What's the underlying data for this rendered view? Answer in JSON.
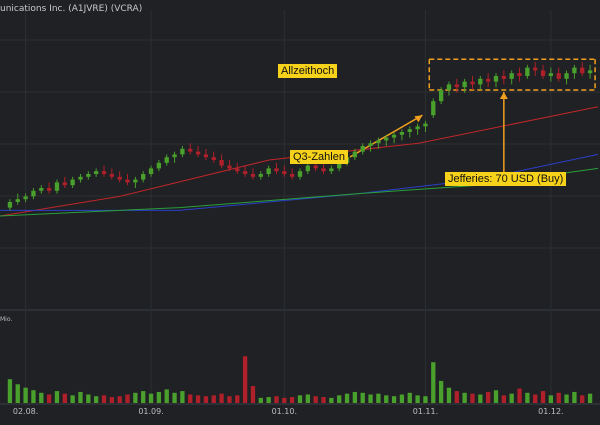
{
  "title": "unications Inc. (A1JVRE) (VCRA)",
  "volume_label": "Mio.",
  "annotations": {
    "ath": "Allzeithoch",
    "q3": "Q3-Zahlen",
    "jefferies": "Jefferies: 70 USD (Buy)"
  },
  "colors": {
    "background": "#1f2124",
    "grid": "#2c2f33",
    "up": "#4aa02c",
    "down": "#b0202a",
    "ma_red": "#c0262a",
    "ma_blue": "#2a3fc8",
    "ma_green": "#29a03a",
    "annotation": "#f7d21a",
    "range_box": "#f0a020"
  },
  "chart_data": {
    "type": "candlestick",
    "x_ticks": [
      "02.08.",
      "01.09.",
      "01.10.",
      "01.11.",
      "01.12."
    ],
    "y_range": [
      0,
      100
    ],
    "volume_range": [
      0,
      100
    ],
    "candles": [
      {
        "o": 33,
        "h": 36,
        "l": 32,
        "c": 35,
        "v": 28
      },
      {
        "o": 35,
        "h": 38,
        "l": 34,
        "c": 36,
        "v": 22
      },
      {
        "o": 36,
        "h": 38,
        "l": 35,
        "c": 37,
        "v": 18
      },
      {
        "o": 37,
        "h": 40,
        "l": 36,
        "c": 39,
        "v": 15
      },
      {
        "o": 39,
        "h": 41,
        "l": 38,
        "c": 40,
        "v": 12
      },
      {
        "o": 40,
        "h": 42,
        "l": 38,
        "c": 39,
        "v": 10
      },
      {
        "o": 39,
        "h": 43,
        "l": 38,
        "c": 42,
        "v": 14
      },
      {
        "o": 42,
        "h": 44,
        "l": 40,
        "c": 41,
        "v": 11
      },
      {
        "o": 41,
        "h": 44,
        "l": 40,
        "c": 43,
        "v": 9
      },
      {
        "o": 43,
        "h": 45,
        "l": 42,
        "c": 44,
        "v": 13
      },
      {
        "o": 44,
        "h": 46,
        "l": 43,
        "c": 45,
        "v": 10
      },
      {
        "o": 45,
        "h": 47,
        "l": 44,
        "c": 46,
        "v": 8
      },
      {
        "o": 46,
        "h": 48,
        "l": 44,
        "c": 45,
        "v": 9
      },
      {
        "o": 45,
        "h": 47,
        "l": 43,
        "c": 44,
        "v": 7
      },
      {
        "o": 44,
        "h": 46,
        "l": 42,
        "c": 43,
        "v": 8
      },
      {
        "o": 43,
        "h": 45,
        "l": 41,
        "c": 42,
        "v": 10
      },
      {
        "o": 42,
        "h": 44,
        "l": 40,
        "c": 43,
        "v": 12
      },
      {
        "o": 43,
        "h": 46,
        "l": 42,
        "c": 45,
        "v": 14
      },
      {
        "o": 45,
        "h": 48,
        "l": 44,
        "c": 47,
        "v": 11
      },
      {
        "o": 47,
        "h": 50,
        "l": 46,
        "c": 49,
        "v": 13
      },
      {
        "o": 49,
        "h": 52,
        "l": 48,
        "c": 51,
        "v": 16
      },
      {
        "o": 51,
        "h": 53,
        "l": 49,
        "c": 52,
        "v": 12
      },
      {
        "o": 52,
        "h": 55,
        "l": 51,
        "c": 54,
        "v": 14
      },
      {
        "o": 54,
        "h": 56,
        "l": 52,
        "c": 53,
        "v": 10
      },
      {
        "o": 53,
        "h": 55,
        "l": 51,
        "c": 52,
        "v": 9
      },
      {
        "o": 52,
        "h": 54,
        "l": 50,
        "c": 51,
        "v": 8
      },
      {
        "o": 51,
        "h": 53,
        "l": 49,
        "c": 50,
        "v": 9
      },
      {
        "o": 50,
        "h": 52,
        "l": 47,
        "c": 48,
        "v": 11
      },
      {
        "o": 48,
        "h": 50,
        "l": 46,
        "c": 47,
        "v": 8
      },
      {
        "o": 47,
        "h": 49,
        "l": 45,
        "c": 46,
        "v": 9
      },
      {
        "o": 46,
        "h": 48,
        "l": 44,
        "c": 45,
        "v": 55
      },
      {
        "o": 45,
        "h": 47,
        "l": 43,
        "c": 44,
        "v": 20
      },
      {
        "o": 44,
        "h": 46,
        "l": 43,
        "c": 45,
        "v": 6
      },
      {
        "o": 45,
        "h": 48,
        "l": 44,
        "c": 47,
        "v": 7
      },
      {
        "o": 47,
        "h": 49,
        "l": 45,
        "c": 46,
        "v": 8
      },
      {
        "o": 46,
        "h": 48,
        "l": 44,
        "c": 45,
        "v": 6
      },
      {
        "o": 45,
        "h": 47,
        "l": 43,
        "c": 44,
        "v": 7
      },
      {
        "o": 44,
        "h": 47,
        "l": 43,
        "c": 46,
        "v": 9
      },
      {
        "o": 46,
        "h": 49,
        "l": 45,
        "c": 48,
        "v": 10
      },
      {
        "o": 48,
        "h": 50,
        "l": 46,
        "c": 47,
        "v": 8
      },
      {
        "o": 47,
        "h": 49,
        "l": 45,
        "c": 46,
        "v": 7
      },
      {
        "o": 46,
        "h": 48,
        "l": 45,
        "c": 47,
        "v": 6
      },
      {
        "o": 47,
        "h": 50,
        "l": 46,
        "c": 49,
        "v": 9
      },
      {
        "o": 49,
        "h": 52,
        "l": 48,
        "c": 51,
        "v": 11
      },
      {
        "o": 51,
        "h": 54,
        "l": 50,
        "c": 53,
        "v": 13
      },
      {
        "o": 53,
        "h": 56,
        "l": 52,
        "c": 55,
        "v": 12
      },
      {
        "o": 55,
        "h": 57,
        "l": 53,
        "c": 56,
        "v": 10
      },
      {
        "o": 56,
        "h": 58,
        "l": 54,
        "c": 57,
        "v": 11
      },
      {
        "o": 57,
        "h": 59,
        "l": 55,
        "c": 58,
        "v": 9
      },
      {
        "o": 58,
        "h": 60,
        "l": 56,
        "c": 59,
        "v": 8
      },
      {
        "o": 59,
        "h": 61,
        "l": 57,
        "c": 60,
        "v": 10
      },
      {
        "o": 60,
        "h": 62,
        "l": 58,
        "c": 61,
        "v": 12
      },
      {
        "o": 61,
        "h": 63,
        "l": 59,
        "c": 62,
        "v": 9
      },
      {
        "o": 62,
        "h": 64,
        "l": 60,
        "c": 63,
        "v": 8
      },
      {
        "o": 66,
        "h": 72,
        "l": 65,
        "c": 71,
        "v": 48
      },
      {
        "o": 71,
        "h": 76,
        "l": 70,
        "c": 75,
        "v": 26
      },
      {
        "o": 75,
        "h": 78,
        "l": 73,
        "c": 77,
        "v": 18
      },
      {
        "o": 77,
        "h": 79,
        "l": 74,
        "c": 76,
        "v": 14
      },
      {
        "o": 76,
        "h": 79,
        "l": 74,
        "c": 78,
        "v": 12
      },
      {
        "o": 78,
        "h": 80,
        "l": 75,
        "c": 77,
        "v": 11
      },
      {
        "o": 77,
        "h": 80,
        "l": 75,
        "c": 79,
        "v": 10
      },
      {
        "o": 79,
        "h": 81,
        "l": 76,
        "c": 78,
        "v": 13
      },
      {
        "o": 78,
        "h": 81,
        "l": 76,
        "c": 80,
        "v": 15
      },
      {
        "o": 80,
        "h": 82,
        "l": 77,
        "c": 79,
        "v": 9
      },
      {
        "o": 79,
        "h": 82,
        "l": 77,
        "c": 81,
        "v": 11
      },
      {
        "o": 81,
        "h": 83,
        "l": 78,
        "c": 80,
        "v": 17
      },
      {
        "o": 80,
        "h": 84,
        "l": 79,
        "c": 83,
        "v": 12
      },
      {
        "o": 83,
        "h": 85,
        "l": 80,
        "c": 82,
        "v": 10
      },
      {
        "o": 82,
        "h": 84,
        "l": 79,
        "c": 80,
        "v": 14
      },
      {
        "o": 80,
        "h": 83,
        "l": 78,
        "c": 81,
        "v": 9
      },
      {
        "o": 81,
        "h": 83,
        "l": 78,
        "c": 79,
        "v": 12
      },
      {
        "o": 79,
        "h": 82,
        "l": 77,
        "c": 81,
        "v": 10
      },
      {
        "o": 81,
        "h": 84,
        "l": 79,
        "c": 83,
        "v": 13
      },
      {
        "o": 83,
        "h": 85,
        "l": 80,
        "c": 81,
        "v": 9
      },
      {
        "o": 81,
        "h": 84,
        "l": 79,
        "c": 82,
        "v": 11
      }
    ],
    "moving_averages": [
      {
        "color": "#c0262a",
        "points": [
          [
            0,
            30
          ],
          [
            20,
            37
          ],
          [
            45,
            50
          ],
          [
            70,
            56
          ],
          [
            100,
            69
          ]
        ]
      },
      {
        "color": "#2a3fc8",
        "points": [
          [
            0,
            32
          ],
          [
            30,
            32
          ],
          [
            60,
            38
          ],
          [
            80,
            43
          ],
          [
            100,
            52
          ]
        ]
      },
      {
        "color": "#29a03a",
        "points": [
          [
            0,
            30
          ],
          [
            30,
            33
          ],
          [
            60,
            38
          ],
          [
            80,
            41
          ],
          [
            100,
            47
          ]
        ]
      }
    ]
  }
}
